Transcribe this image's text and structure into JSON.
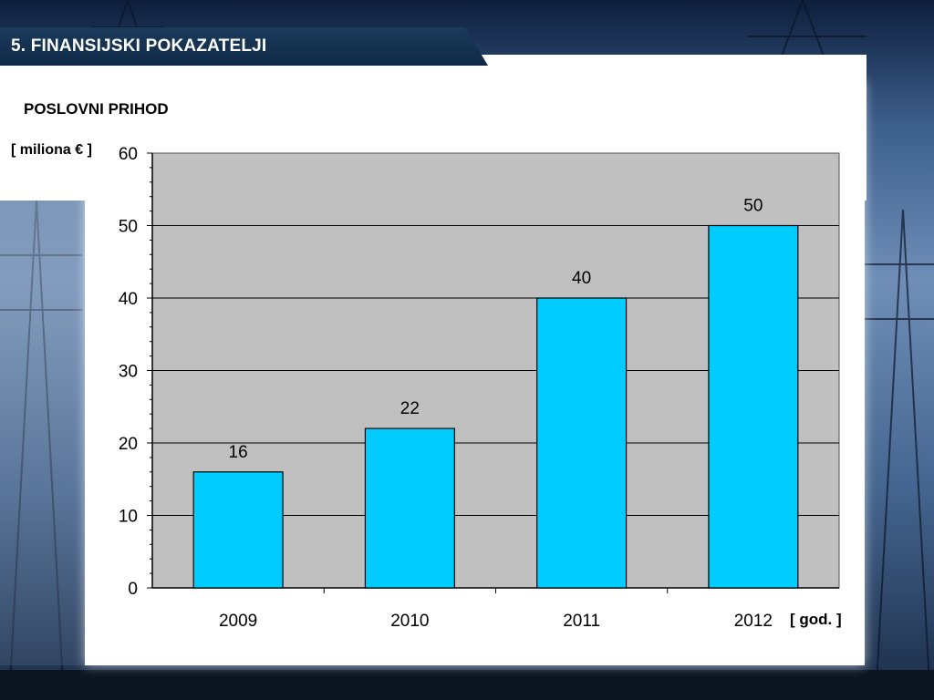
{
  "header": {
    "title": "5. FINANSIJSKI POKAZATELJI"
  },
  "chart_data": {
    "type": "bar",
    "title": "POSLOVNI PRIHOD",
    "ylabel": "[ miliona € ]",
    "xlabel": "[ god. ]",
    "categories": [
      "2009",
      "2010",
      "2011",
      "2012"
    ],
    "values": [
      16,
      22,
      40,
      50
    ],
    "ylim": [
      0,
      60
    ],
    "yticks": [
      "0",
      "10",
      "20",
      "30",
      "40",
      "50",
      "60"
    ],
    "grid": true,
    "colors": {
      "bar": "#00ccff",
      "plot_bg": "#c0c0c0",
      "grid": "#000000"
    }
  }
}
